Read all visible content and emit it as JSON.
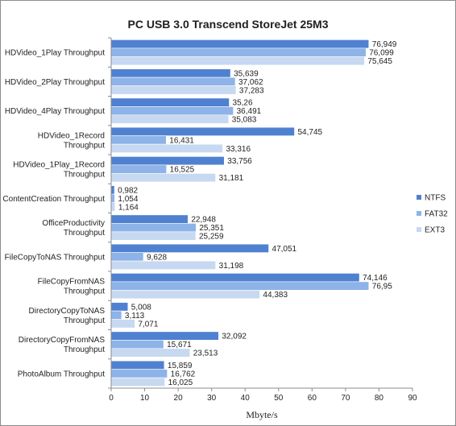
{
  "chart_data": {
    "type": "bar",
    "orientation": "horizontal",
    "title": "PC USB 3.0 Transcend StoreJet 25M3",
    "xlabel": "Mbyte/s",
    "ylabel": "",
    "xlim": [
      0,
      90
    ],
    "xticks": [
      "0",
      "10",
      "20",
      "30",
      "40",
      "50",
      "60",
      "70",
      "80",
      "90"
    ],
    "grid": false,
    "legend_position": "right",
    "categories": [
      [
        "HDVideo_1Play Throughput"
      ],
      [
        "HDVideo_2Play Throughput"
      ],
      [
        "HDVideo_4Play Throughput"
      ],
      [
        "HDVideo_1Record",
        "Throughput"
      ],
      [
        "HDVideo_1Play_1Record",
        "Throughput"
      ],
      [
        "ContentCreation Throughput"
      ],
      [
        "OfficeProductivity",
        "Throughput"
      ],
      [
        "FileCopyToNAS Throughput"
      ],
      [
        "FileCopyFromNAS",
        "Throughput"
      ],
      [
        "DirectoryCopyToNAS",
        "Throughput"
      ],
      [
        "DirectoryCopyFromNAS",
        "Throughput"
      ],
      [
        "PhotoAlbum Throughput"
      ]
    ],
    "series": [
      {
        "name": "NTFS",
        "color": "#4f81d0",
        "values": [
          76.949,
          35.639,
          35.26,
          54.745,
          33.756,
          0.982,
          22.948,
          47.051,
          74.146,
          5.008,
          32.092,
          15.859
        ],
        "labels": [
          "76,949",
          "35,639",
          "35,26",
          "54,745",
          "33,756",
          "0,982",
          "22,948",
          "47,051",
          "74,146",
          "5,008",
          "32,092",
          "15,859"
        ]
      },
      {
        "name": "FAT32",
        "color": "#8db3e8",
        "values": [
          76.099,
          37.062,
          36.491,
          16.431,
          16.525,
          1.054,
          25.351,
          9.628,
          76.95,
          3.113,
          15.671,
          16.762
        ],
        "labels": [
          "76,099",
          "37,062",
          "36,491",
          "16,431",
          "16,525",
          "1,054",
          "25,351",
          "9,628",
          "76,95",
          "3,113",
          "15,671",
          "16,762"
        ]
      },
      {
        "name": "EXT3",
        "color": "#c7d8f1",
        "values": [
          75.645,
          37.283,
          35.083,
          33.316,
          31.181,
          1.164,
          25.259,
          31.198,
          44.383,
          7.071,
          23.513,
          16.025
        ],
        "labels": [
          "75,645",
          "37,283",
          "35,083",
          "33,316",
          "31,181",
          "1,164",
          "25,259",
          "31,198",
          "44,383",
          "7,071",
          "23,513",
          "16,025"
        ]
      }
    ]
  }
}
